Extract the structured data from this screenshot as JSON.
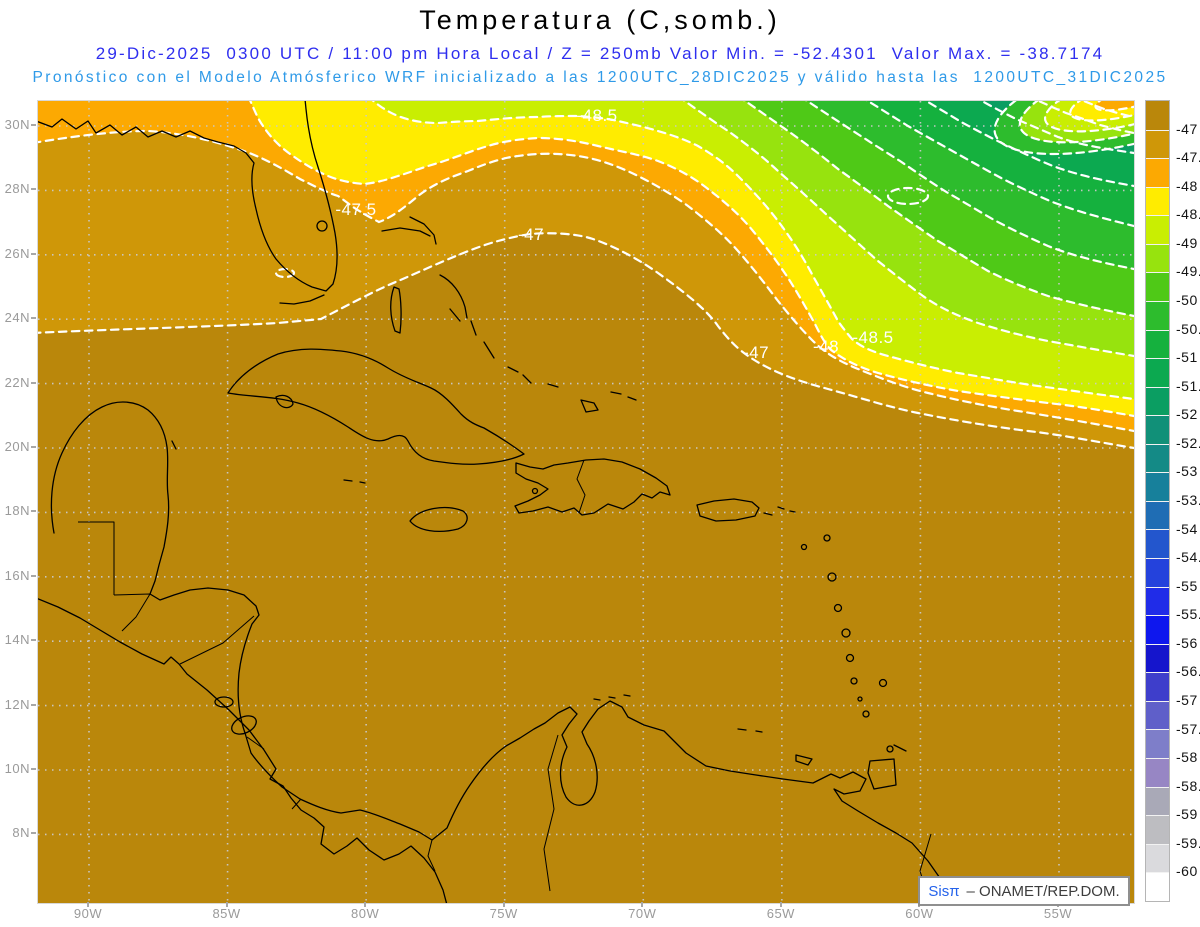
{
  "header": {
    "title": "Temperatura (C,somb.)",
    "subtitle": "29-Dic-2025  0300 UTC / 11:00 pm Hora Local / Z = 250mb Valor Min. = -52.4301  Valor Max. = -38.7174",
    "forecast_line": "Pronóstico con el Modelo Atmósferico WRF inicializado a las 1200UTC_28DIC2025 y válido hasta las  1200UTC_31DIC2025",
    "title_color": "#000000",
    "subtitle_color": "#2e2eef",
    "forecast_color": "#2f9ae8"
  },
  "axis": {
    "lat_labels": [
      "30N",
      "28N",
      "26N",
      "24N",
      "22N",
      "20N",
      "18N",
      "16N",
      "14N",
      "12N",
      "10N",
      "8N"
    ],
    "lon_labels": [
      "90W",
      "85W",
      "80W",
      "75W",
      "70W",
      "65W",
      "60W",
      "55W"
    ]
  },
  "colorbar": {
    "labels": [
      "-47",
      "-47.5",
      "-48",
      "-48.5",
      "-49",
      "-49.5",
      "-50",
      "-50.5",
      "-51",
      "-51.5",
      "-52",
      "-52.5",
      "-53",
      "-53.5",
      "-54",
      "-54.5",
      "-55",
      "-55.5",
      "-56",
      "-56.5",
      "-57",
      "-57.5",
      "-58",
      "-58.5",
      "-59",
      "-59.5",
      "-60"
    ],
    "colors": [
      "#ba870b",
      "#cf9708",
      "#fca902",
      "#ffec00",
      "#c9ee02",
      "#97e30e",
      "#4fc917",
      "#2dbc2d",
      "#15b13e",
      "#0ca950",
      "#0b9e62",
      "#119078",
      "#148a86",
      "#17809b",
      "#1f6db4",
      "#2356cd",
      "#2442dc",
      "#202ce8",
      "#0e17ee",
      "#1515cc",
      "#3e3ecb",
      "#5f5fc9",
      "#7e7ec9",
      "#9786c4",
      "#a9a9b7",
      "#bdbdc1",
      "#dadadd",
      "#ffffff"
    ]
  },
  "map": {
    "contour_labels": [
      {
        "text": "-48.5"
      },
      {
        "text": "-47.5"
      },
      {
        "text": "-47"
      },
      {
        "text": "-47"
      },
      {
        "text": "-48"
      },
      {
        "text": "-48.5"
      }
    ]
  },
  "logo": {
    "brand": "Sisπ",
    "org": "– ONAMET/REP.DOM."
  }
}
